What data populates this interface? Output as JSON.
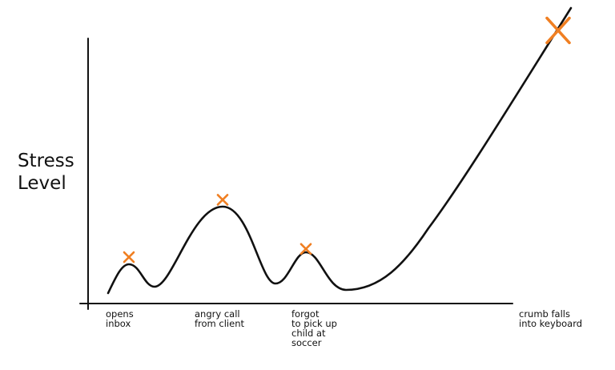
{
  "chart_data": {
    "type": "line",
    "title": "",
    "ylabel": [
      "Stress",
      "Level"
    ],
    "xlabel": "",
    "grid": false,
    "legend": "none",
    "colors": {
      "line": "#111111",
      "marker": "#f07f22",
      "axis": "#111111"
    },
    "events": [
      {
        "label": [
          "opens",
          "inbox"
        ],
        "stress": 0.17
      },
      {
        "label": [
          "angry call",
          "from client"
        ],
        "stress": 0.38
      },
      {
        "label": [
          "forgot",
          "to pick up",
          "child at",
          "soccer"
        ],
        "stress": 0.2
      },
      {
        "label": [
          "crumb falls",
          "into keyboard"
        ],
        "stress": 1.0
      }
    ]
  }
}
